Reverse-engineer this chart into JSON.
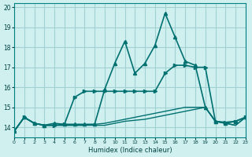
{
  "xlabel": "Humidex (Indice chaleur)",
  "bg_color": "#d0f0f0",
  "grid_color": "#a0d0d0",
  "line_color": "#007070",
  "xlim": [
    0,
    23
  ],
  "ylim": [
    13.5,
    20.2
  ],
  "yticks": [
    14,
    15,
    16,
    17,
    18,
    19,
    20
  ],
  "xticks": [
    0,
    1,
    2,
    3,
    4,
    5,
    6,
    7,
    8,
    9,
    10,
    11,
    12,
    13,
    14,
    15,
    16,
    17,
    18,
    19,
    20,
    21,
    22,
    23
  ],
  "series": [
    {
      "x": [
        0,
        1,
        2,
        3,
        4,
        5,
        6,
        7,
        8,
        9,
        10,
        11,
        12,
        13,
        14,
        15,
        16,
        17,
        18,
        19,
        20,
        21,
        22,
        23
      ],
      "y": [
        13.8,
        14.5,
        14.2,
        14.1,
        14.2,
        14.15,
        14.15,
        14.15,
        14.15,
        15.9,
        17.2,
        18.3,
        16.7,
        17.2,
        18.1,
        19.7,
        18.5,
        17.3,
        17.1,
        15.0,
        14.3,
        14.2,
        14.3,
        14.5
      ],
      "marker": "^",
      "markersize": 3,
      "linewidth": 1.2
    },
    {
      "x": [
        0,
        1,
        2,
        3,
        4,
        5,
        6,
        7,
        8,
        9,
        10,
        11,
        12,
        13,
        14,
        15,
        16,
        17,
        18,
        19,
        20,
        21,
        22,
        23
      ],
      "y": [
        13.8,
        14.5,
        14.2,
        14.1,
        14.1,
        14.15,
        15.5,
        15.8,
        15.8,
        15.8,
        15.8,
        15.8,
        15.8,
        15.8,
        15.8,
        16.7,
        17.1,
        17.1,
        17.0,
        17.0,
        14.3,
        14.25,
        14.3,
        14.5
      ],
      "marker": ">",
      "markersize": 3,
      "linewidth": 1.2
    },
    {
      "x": [
        0,
        1,
        2,
        3,
        4,
        5,
        6,
        7,
        8,
        9,
        10,
        11,
        12,
        13,
        14,
        15,
        16,
        17,
        18,
        19,
        20,
        21,
        22,
        23
      ],
      "y": [
        13.8,
        14.5,
        14.2,
        14.1,
        14.1,
        14.1,
        14.1,
        14.1,
        14.1,
        14.1,
        14.2,
        14.3,
        14.35,
        14.4,
        14.5,
        14.6,
        14.7,
        14.8,
        14.9,
        15.0,
        14.3,
        14.2,
        14.1,
        14.5
      ],
      "marker": null,
      "markersize": 0,
      "linewidth": 1.0
    },
    {
      "x": [
        0,
        1,
        2,
        3,
        4,
        5,
        6,
        7,
        8,
        9,
        10,
        11,
        12,
        13,
        14,
        15,
        16,
        17,
        18,
        19,
        20,
        21,
        22,
        23
      ],
      "y": [
        13.8,
        14.5,
        14.2,
        14.1,
        14.1,
        14.1,
        14.1,
        14.1,
        14.15,
        14.2,
        14.3,
        14.4,
        14.5,
        14.6,
        14.7,
        14.8,
        14.9,
        15.0,
        15.0,
        15.0,
        14.3,
        14.2,
        14.1,
        14.5
      ],
      "marker": null,
      "markersize": 0,
      "linewidth": 1.0
    }
  ]
}
